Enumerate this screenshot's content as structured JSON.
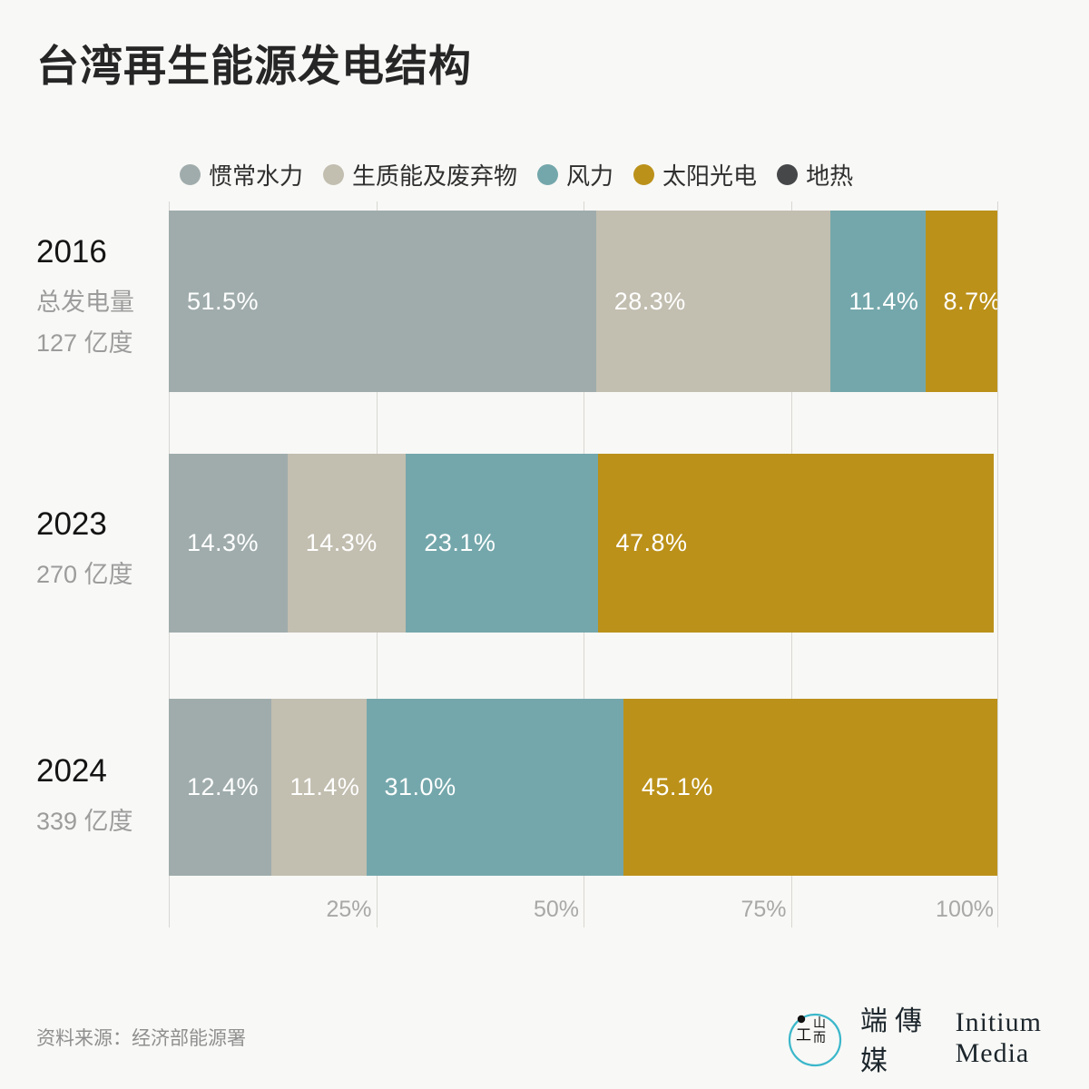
{
  "title": "台湾再生能源发电结构",
  "colors": {
    "background": "#f8f8f6",
    "hydro": "#a0acac",
    "biomass": "#c2beb0",
    "wind": "#74a7ab",
    "solar": "#bb9119",
    "geothermal": "#454749",
    "gridline": "#d8d7d2",
    "logo_ring": "#3ab7ca"
  },
  "legend": {
    "items": [
      {
        "label": "惯常水力",
        "color": "#a0acac"
      },
      {
        "label": "生质能及废弃物",
        "color": "#c2beb0"
      },
      {
        "label": "风力",
        "color": "#74a7ab"
      },
      {
        "label": "太阳光电",
        "color": "#bb9119"
      },
      {
        "label": "地热",
        "color": "#454749"
      }
    ]
  },
  "rows": [
    {
      "year": "2016",
      "subtitles": [
        "总发电量",
        "127 亿度"
      ],
      "segments": [
        {
          "label": "51.5%",
          "value": 51.5,
          "color": "#a0acac"
        },
        {
          "label": "28.3%",
          "value": 28.3,
          "color": "#c2beb0"
        },
        {
          "label": "11.4%",
          "value": 11.4,
          "color": "#74a7ab"
        },
        {
          "label": "8.7%",
          "value": 8.7,
          "color": "#bb9119"
        }
      ]
    },
    {
      "year": "2023",
      "subtitles": [
        "270 亿度"
      ],
      "segments": [
        {
          "label": "14.3%",
          "value": 14.3,
          "color": "#a0acac"
        },
        {
          "label": "14.3%",
          "value": 14.3,
          "color": "#c2beb0"
        },
        {
          "label": "23.1%",
          "value": 23.1,
          "color": "#74a7ab"
        },
        {
          "label": "47.8%",
          "value": 47.8,
          "color": "#bb9119"
        }
      ]
    },
    {
      "year": "2024",
      "subtitles": [
        "339 亿度"
      ],
      "segments": [
        {
          "label": "12.4%",
          "value": 12.4,
          "color": "#a0acac"
        },
        {
          "label": "11.4%",
          "value": 11.4,
          "color": "#c2beb0"
        },
        {
          "label": "31.0%",
          "value": 31.0,
          "color": "#74a7ab"
        },
        {
          "label": "45.1%",
          "value": 45.1,
          "color": "#bb9119"
        }
      ]
    }
  ],
  "axis": {
    "ticks": [
      {
        "label": "25%",
        "pos": 25
      },
      {
        "label": "50%",
        "pos": 50
      },
      {
        "label": "75%",
        "pos": 75
      },
      {
        "label": "100%",
        "pos": 100
      }
    ]
  },
  "footer": {
    "source": "资料来源：经济部能源署",
    "brand_zh": "端傳媒",
    "brand_en": "Initium Media"
  },
  "chart_data": {
    "type": "bar",
    "orientation": "horizontal-stacked",
    "title": "台湾再生能源发电结构",
    "categories": [
      "2016",
      "2023",
      "2024"
    ],
    "category_subtitles": [
      "总发电量 127 亿度",
      "270 亿度",
      "339 亿度"
    ],
    "series": [
      {
        "name": "惯常水力",
        "values": [
          51.5,
          14.3,
          12.4
        ],
        "color": "#a0acac"
      },
      {
        "name": "生质能及废弃物",
        "values": [
          28.3,
          14.3,
          11.4
        ],
        "color": "#c2beb0"
      },
      {
        "name": "风力",
        "values": [
          11.4,
          23.1,
          31.0
        ],
        "color": "#74a7ab"
      },
      {
        "name": "太阳光电",
        "values": [
          8.7,
          47.8,
          45.1
        ],
        "color": "#bb9119"
      },
      {
        "name": "地热",
        "values": [
          null,
          null,
          null
        ],
        "color": "#454749",
        "note": "shown in legend only; segments too small to appear"
      }
    ],
    "unit": "%",
    "xlim": [
      0,
      100
    ],
    "x_ticks": [
      25,
      50,
      75,
      100
    ],
    "x_tick_labels": [
      "25%",
      "50%",
      "75%",
      "100%"
    ],
    "legend_position": "top",
    "grid": "vertical",
    "source": "资料来源：经济部能源署"
  }
}
